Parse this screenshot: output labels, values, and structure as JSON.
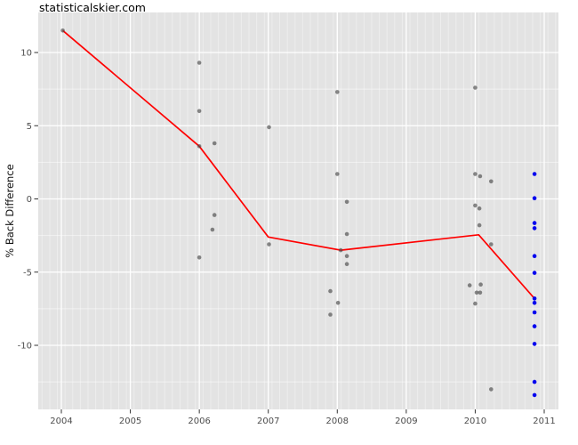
{
  "page": {
    "title": "statisticalskier.com"
  },
  "axes": {
    "y_label": "% Back Difference"
  },
  "colors": {
    "panel": "#E3E3E3",
    "grid_major": "#FFFFFF",
    "tick": "#333333",
    "tick_label": "#4D4D4D",
    "gray_points": "#4A4A4A",
    "blue_points": "#0000EE",
    "trend_line": "#FF0000"
  },
  "chart_data": {
    "type": "scatter",
    "title": "statisticalskier.com",
    "xlabel": "",
    "ylabel": "% Back Difference",
    "x_ticks": [
      2004,
      2005,
      2006,
      2007,
      2008,
      2009,
      2010,
      2011
    ],
    "y_ticks": [
      10,
      5,
      0,
      -5,
      -10
    ],
    "y_minor_ticks": [
      7.5,
      2.5,
      -2.5,
      -7.5,
      -12.5
    ],
    "xlim": [
      2003.67,
      2011.21
    ],
    "ylim": [
      -14.4,
      12.7
    ],
    "grid": "major white on gray panel, faint vertical minor striping",
    "legend_position": "none",
    "series": [
      {
        "name": "individual races (gray)",
        "type": "scatter",
        "color": "#4A4A4A",
        "opacity": 0.65,
        "points": [
          [
            2004.02,
            11.5
          ],
          [
            2006.0,
            9.3
          ],
          [
            2006.0,
            6.0
          ],
          [
            2006.0,
            3.6
          ],
          [
            2006.22,
            3.8
          ],
          [
            2006.22,
            -1.1
          ],
          [
            2006.19,
            -2.1
          ],
          [
            2006.0,
            -4.0
          ],
          [
            2007.01,
            4.9
          ],
          [
            2007.01,
            -3.1
          ],
          [
            2008.0,
            7.3
          ],
          [
            2008.0,
            1.7
          ],
          [
            2008.14,
            -0.2
          ],
          [
            2008.14,
            -2.4
          ],
          [
            2008.05,
            -3.5
          ],
          [
            2008.14,
            -3.9
          ],
          [
            2008.14,
            -4.45
          ],
          [
            2007.9,
            -6.3
          ],
          [
            2008.01,
            -7.1
          ],
          [
            2007.9,
            -7.9
          ],
          [
            2010.0,
            7.6
          ],
          [
            2010.0,
            1.7
          ],
          [
            2010.07,
            1.55
          ],
          [
            2010.23,
            1.2
          ],
          [
            2010.0,
            -0.45
          ],
          [
            2010.06,
            -0.65
          ],
          [
            2010.06,
            -1.8
          ],
          [
            2010.23,
            -3.1
          ],
          [
            2009.92,
            -5.9
          ],
          [
            2010.08,
            -5.85
          ],
          [
            2010.02,
            -6.4
          ],
          [
            2010.07,
            -6.4
          ],
          [
            2010.0,
            -7.15
          ],
          [
            2010.23,
            -13.0
          ]
        ]
      },
      {
        "name": "2011 races (blue)",
        "type": "scatter",
        "color": "#0000EE",
        "opacity": 1,
        "points": [
          [
            2010.86,
            1.7
          ],
          [
            2010.86,
            0.05
          ],
          [
            2010.86,
            -1.65
          ],
          [
            2010.86,
            -2.0
          ],
          [
            2010.86,
            -3.9
          ],
          [
            2010.86,
            -5.05
          ],
          [
            2010.86,
            -6.8
          ],
          [
            2010.86,
            -7.1
          ],
          [
            2010.86,
            -7.75
          ],
          [
            2010.86,
            -8.7
          ],
          [
            2010.86,
            -9.9
          ],
          [
            2010.86,
            -12.5
          ],
          [
            2010.86,
            -13.4
          ]
        ]
      },
      {
        "name": "season trend (red line)",
        "type": "line",
        "color": "#FF0000",
        "points": [
          [
            2004.02,
            11.5
          ],
          [
            2006.0,
            3.6
          ],
          [
            2007.0,
            -2.6
          ],
          [
            2008.05,
            -3.5
          ],
          [
            2010.05,
            -2.45
          ],
          [
            2010.86,
            -6.8
          ]
        ]
      }
    ]
  }
}
